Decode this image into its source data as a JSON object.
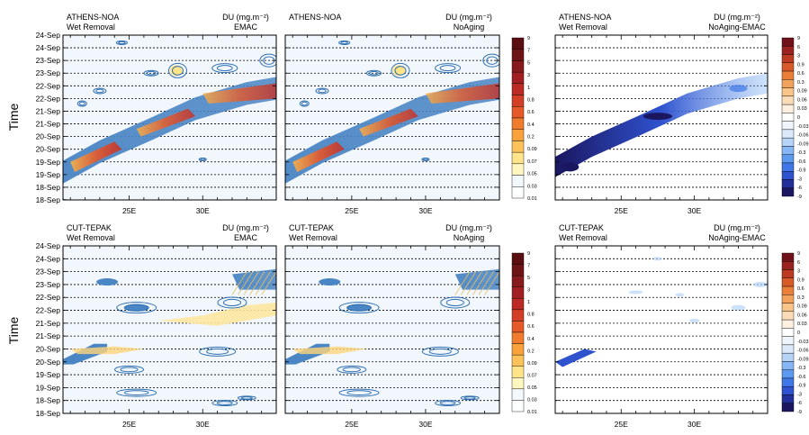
{
  "y_axis_label": "Time",
  "time_ticks": [
    "18-Sep",
    "18-Sep",
    "19-Sep",
    "19-Sep",
    "20-Sep",
    "20-Sep",
    "21-Sep",
    "21-Sep",
    "22-Sep",
    "22-Sep",
    "23-Sep",
    "23-Sep",
    "24-Sep",
    "24-Sep"
  ],
  "x_ticks": [
    "25E",
    "30E"
  ],
  "quantity_label": "DU (mg.m⁻²)",
  "colorbar_abs": [
    "9",
    "7",
    "5",
    "3",
    "1",
    "0.8",
    "0.6",
    "0.4",
    "0.2",
    "0.09",
    "0.07",
    "0.05",
    "0.03",
    "0.01"
  ],
  "colorbar_diff": [
    "9",
    "6",
    "3",
    "0.9",
    "0.6",
    "0.3",
    "0.09",
    "0.06",
    "0.03",
    "0",
    "-0.03",
    "-0.06",
    "-0.09",
    "-0.3",
    "-0.6",
    "-0.9",
    "-3",
    "-6",
    "-9"
  ],
  "colors": {
    "abs_scale": [
      "#fdfefe",
      "#f3f8fd",
      "#fff6c0",
      "#ffe48a",
      "#fdc35a",
      "#f9a23b",
      "#f17c30",
      "#e65a2a",
      "#d33e26",
      "#bc2a25",
      "#a11f22",
      "#861a1c",
      "#6e1416",
      "#5a0e10"
    ],
    "diff_scale": [
      "#1a1760",
      "#23309a",
      "#2f52cf",
      "#3f78e6",
      "#5c99ef",
      "#86b7f4",
      "#b6d4f8",
      "#dbe9fb",
      "#eef5fd",
      "#ffffff",
      "#fdf0e0",
      "#fbdcb8",
      "#f8c487",
      "#f3a25b",
      "#ea7f3a",
      "#d85a28",
      "#bd3a22",
      "#9a2220",
      "#70121a"
    ],
    "contour": "#2f6fb0",
    "band": "#4a85c4"
  },
  "panels": [
    {
      "station": "ATHENS-NOA",
      "process": "Wet Removal",
      "run": "EMAC",
      "kind": "abs"
    },
    {
      "station": "ATHENS-NOA",
      "process": "",
      "run": "NoAging",
      "kind": "abs"
    },
    {
      "station": "ATHENS-NOA",
      "process": "Wet Removal",
      "run": "NoAging-EMAC",
      "kind": "diff"
    },
    {
      "station": "CUT-TEPAK",
      "process": "Wet Removal",
      "run": "EMAC",
      "kind": "abs"
    },
    {
      "station": "CUT-TEPAK",
      "process": "Wet Removal",
      "run": "NoAging",
      "kind": "abs"
    },
    {
      "station": "CUT-TEPAK",
      "process": "Wet Removal",
      "run": "NoAging-EMAC",
      "kind": "diff"
    }
  ],
  "chart_data": {
    "type": "heatmap",
    "x_axis": {
      "unit": "degrees east longitude",
      "range": [
        20.5,
        35
      ],
      "ticks": [
        25,
        30
      ]
    },
    "y_axis": {
      "label": "Time",
      "range_days_september": [
        18,
        24.5
      ],
      "ticks": [
        "18-Sep",
        "19-Sep",
        "20-Sep",
        "21-Sep",
        "22-Sep",
        "23-Sep",
        "24-Sep"
      ]
    },
    "grid": "dashed horizontal lines at half-day intervals",
    "note_series": "wet removal dust loss plotted as shaded contours over longitude versus time for two stations"
  }
}
